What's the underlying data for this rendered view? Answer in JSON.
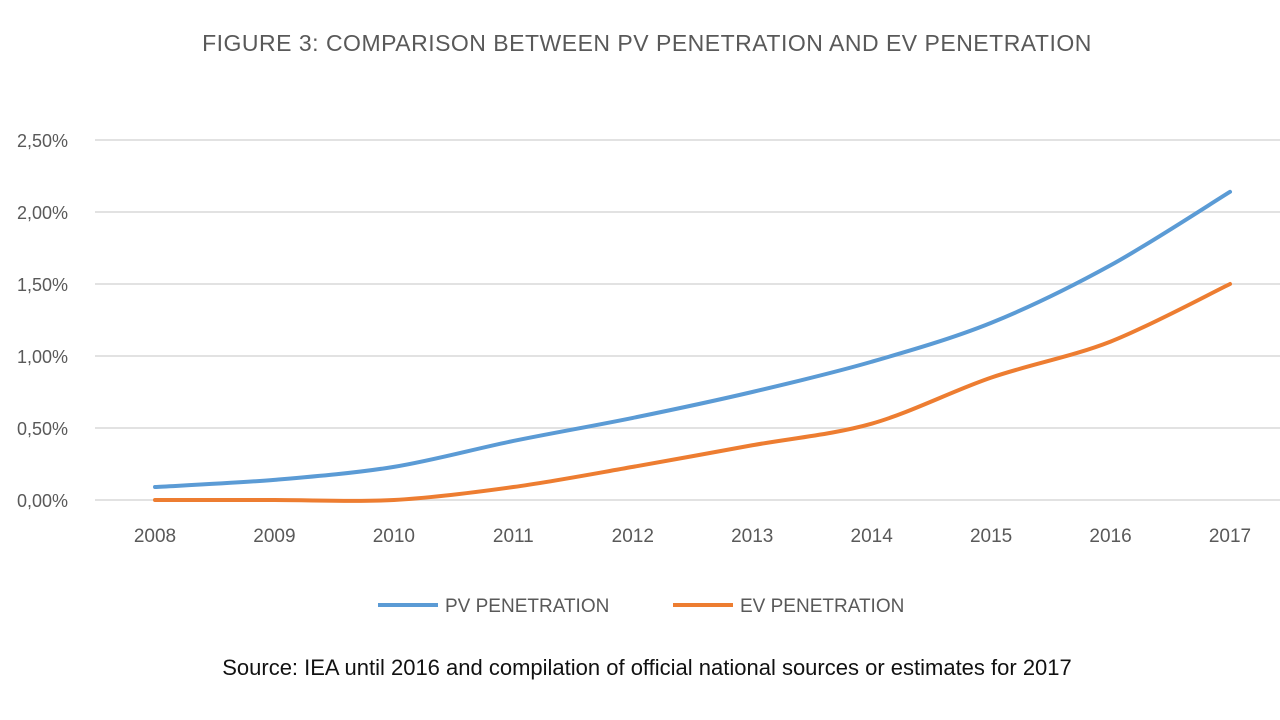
{
  "chart_data": {
    "type": "line",
    "title": "FIGURE 3: COMPARISON BETWEEN PV PENETRATION AND EV PENETRATION",
    "xlabel": "",
    "ylabel": "",
    "categories": [
      "2008",
      "2009",
      "2010",
      "2011",
      "2012",
      "2013",
      "2014",
      "2015",
      "2016",
      "2017"
    ],
    "y_ticks": [
      "0,00%",
      "0,50%",
      "1,00%",
      "1,50%",
      "2,00%",
      "2,50%"
    ],
    "y_tick_values": [
      0,
      0.5,
      1.0,
      1.5,
      2.0,
      2.5
    ],
    "ylim": [
      0,
      2.5
    ],
    "grid": true,
    "legend_position": "bottom",
    "series": [
      {
        "name": "PV PENETRATION",
        "color": "#5b9bd5",
        "values": [
          0.09,
          0.14,
          0.23,
          0.41,
          0.57,
          0.75,
          0.96,
          1.23,
          1.63,
          2.14
        ]
      },
      {
        "name": "EV PENETRATION",
        "color": "#ed7d31",
        "values": [
          0.0,
          0.0,
          0.0,
          0.09,
          0.23,
          0.38,
          0.53,
          0.85,
          1.1,
          1.5
        ]
      }
    ]
  },
  "source_note": "Source: IEA until 2016 and compilation of official national sources or estimates for 2017"
}
